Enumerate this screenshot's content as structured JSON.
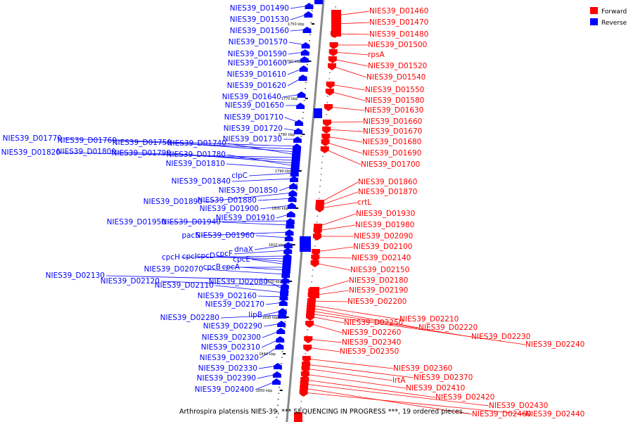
{
  "caption": "Arthrospira platensis NIES-39, *** SEQUENCING IN PROGRESS ***, 19 ordered pieces...",
  "legend": [
    {
      "label": "Forward",
      "color": "#ff0000"
    },
    {
      "label": "Reverse",
      "color": "#0000ff"
    }
  ],
  "colors": {
    "forward": "#ff0000",
    "reverse": "#0000ff",
    "backbone": "#888888"
  },
  "scale_labels": [
    "1750 kbp",
    "1760 kbp",
    "1770 kbp",
    "1780 kbp",
    "1790 kbp",
    "1800 kbp",
    "1810 kbp",
    "1820 kbp",
    "1830 kbp",
    "1840 kbp",
    "1850 kbp"
  ],
  "reverse_genes": [
    "NIES39_D01490",
    "NIES39_D01530",
    "NIES39_D01560",
    "NIES39_D01570",
    "NIES39_D01590",
    "NIES39_D01600",
    "NIES39_D01610",
    "NIES39_D01620",
    "NIES39_D01640",
    "NIES39_D01650",
    "NIES39_D01710",
    "NIES39_D01720",
    "NIES39_D01730",
    "NIES39_D01770",
    "NIES39_D01760",
    "NIES39_D01750",
    "NIES39_D01740",
    "NIES39_D01820",
    "NIES39_D01800",
    "NIES39_D01790",
    "NIES39_D01780",
    "NIES39_D01810",
    "clpC",
    "NIES39_D01840",
    "NIES39_D01850",
    "NIES39_D01890",
    "NIES39_D01880",
    "NIES39_D01900",
    "NIES39_D01910",
    "NIES39_D01950",
    "NIES39_D01940",
    "pacS",
    "NIES39_D01960",
    "dnaX",
    "cpcF",
    "cpcH",
    "cpcI",
    "cpcD",
    "cpcE",
    "cpcB",
    "cpcA",
    "NIES39_D02070",
    "NIES39_D02130",
    "NIES39_D02120",
    "NIES39_D02080",
    "NIES39_D02110",
    "NIES39_D02160",
    "NIES39_D02170",
    "lipB",
    "NIES39_D02280",
    "NIES39_D02290",
    "NIES39_D02300",
    "NIES39_D02310",
    "NIES39_D02320",
    "NIES39_D02330",
    "NIES39_D02390",
    "NIES39_D02400"
  ],
  "forward_genes": [
    "NIES39_D01460",
    "NIES39_D01470",
    "NIES39_D01480",
    "NIES39_D01500",
    "rpsA",
    "NIES39_D01520",
    "NIES39_D01540",
    "NIES39_D01550",
    "NIES39_D01580",
    "NIES39_D01630",
    "NIES39_D01660",
    "NIES39_D01670",
    "NIES39_D01680",
    "NIES39_D01690",
    "NIES39_D01700",
    "NIES39_D01860",
    "NIES39_D01870",
    "crtL",
    "NIES39_D01930",
    "NIES39_D01980",
    "NIES39_D02090",
    "NIES39_D02100",
    "NIES39_D02140",
    "NIES39_D02150",
    "NIES39_D02180",
    "NIES39_D02190",
    "NIES39_D02200",
    "NIES39_D02210",
    "NIES39_D02220",
    "NIES39_D02230",
    "NIES39_D02240",
    "NIES39_D02250",
    "NIES39_D02260",
    "NIES39_D02340",
    "NIES39_D02350",
    "NIES39_D02360",
    "NIES39_D02370",
    "lrtA",
    "NIES39_D02410",
    "NIES39_D02420",
    "NIES39_D02430",
    "NIES39_D02460",
    "NIES39_D02440"
  ]
}
